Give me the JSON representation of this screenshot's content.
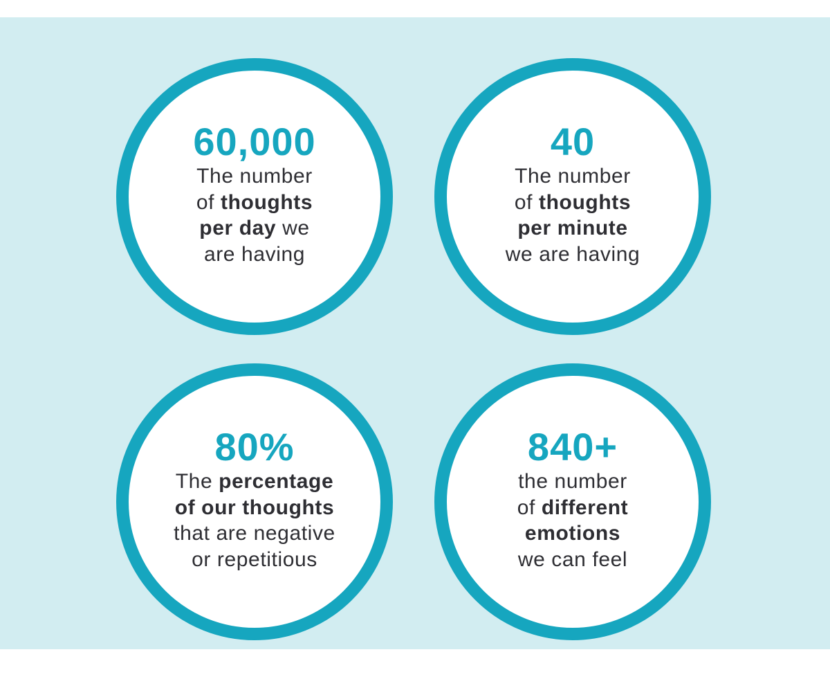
{
  "colors": {
    "background_panel": "#d2edf1",
    "circle_border": "#16a6bf",
    "stat_number": "#16a6bf",
    "text": "#2e2e33"
  },
  "stats": [
    {
      "value": "60,000",
      "lines": [
        [
          {
            "t": "The number",
            "b": false
          }
        ],
        [
          {
            "t": "of ",
            "b": false
          },
          {
            "t": "thoughts",
            "b": true
          }
        ],
        [
          {
            "t": "per day",
            "b": true
          },
          {
            "t": " we",
            "b": false
          }
        ],
        [
          {
            "t": "are having",
            "b": false
          }
        ]
      ]
    },
    {
      "value": "40",
      "lines": [
        [
          {
            "t": "The number",
            "b": false
          }
        ],
        [
          {
            "t": "of ",
            "b": false
          },
          {
            "t": "thoughts",
            "b": true
          }
        ],
        [
          {
            "t": "per minute",
            "b": true
          }
        ],
        [
          {
            "t": "we are having",
            "b": false
          }
        ]
      ]
    },
    {
      "value": "80%",
      "lines": [
        [
          {
            "t": "The ",
            "b": false
          },
          {
            "t": "percentage",
            "b": true
          }
        ],
        [
          {
            "t": "of our thoughts",
            "b": true
          }
        ],
        [
          {
            "t": "that are negative",
            "b": false
          }
        ],
        [
          {
            "t": "or repetitious",
            "b": false
          }
        ]
      ]
    },
    {
      "value": "840+",
      "lines": [
        [
          {
            "t": "the number",
            "b": false
          }
        ],
        [
          {
            "t": "of ",
            "b": false
          },
          {
            "t": "different",
            "b": true
          }
        ],
        [
          {
            "t": "emotions",
            "b": true
          }
        ],
        [
          {
            "t": "we can feel",
            "b": false
          }
        ]
      ]
    }
  ]
}
